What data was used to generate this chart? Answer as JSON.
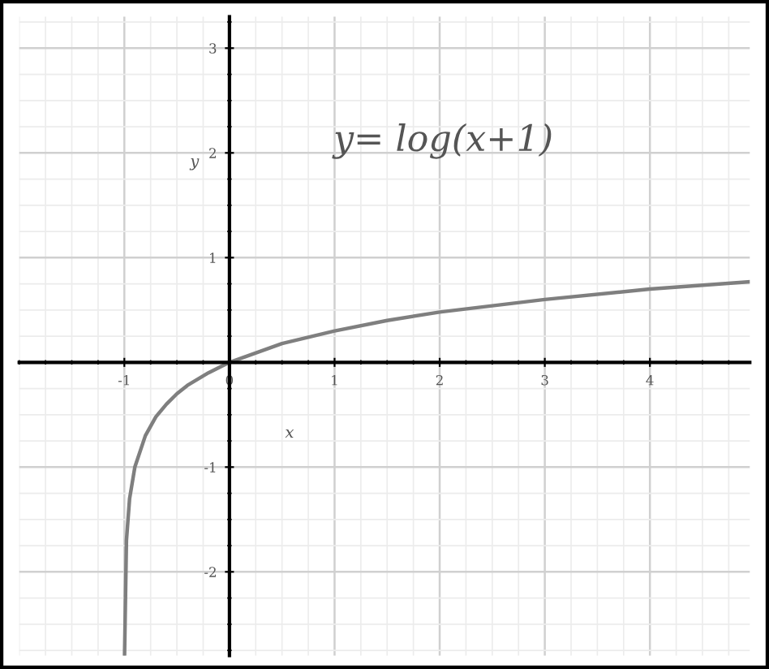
{
  "chart_data": {
    "type": "line",
    "annotations": [
      "y= log(x+1)"
    ],
    "xlabel": "x",
    "ylabel": "y",
    "x": [
      -0.998,
      -0.98,
      -0.95,
      -0.9,
      -0.8,
      -0.7,
      -0.6,
      -0.5,
      -0.4,
      -0.2,
      0,
      0.5,
      1,
      1.5,
      2,
      3,
      4,
      4.95
    ],
    "series": [
      {
        "color": "#7f7f7f",
        "values": [
          -2.8,
          -1.7,
          -1.3,
          -1.0,
          -0.7,
          -0.52,
          -0.4,
          -0.3,
          -0.22,
          -0.1,
          0,
          0.18,
          0.3,
          0.4,
          0.48,
          0.6,
          0.7,
          0.77
        ]
      }
    ],
    "xlim": [
      -2,
      4.95
    ],
    "ylim": [
      -2.8,
      3.3
    ],
    "xticks": [
      -1,
      0,
      1,
      2,
      3,
      4
    ],
    "yticks": [
      -2,
      -1,
      1,
      2,
      3
    ],
    "grid": true,
    "marker": "none",
    "line_style": "solid"
  }
}
